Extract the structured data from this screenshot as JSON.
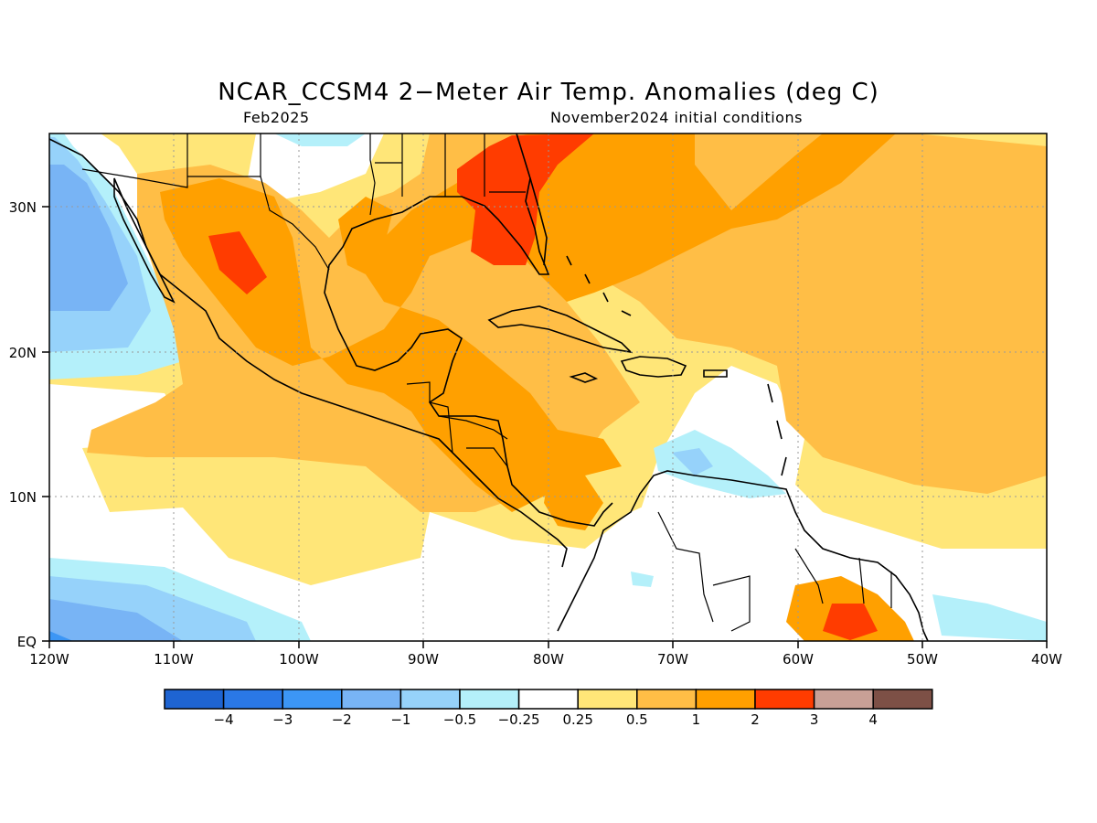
{
  "title": "NCAR_CCSM4 2−Meter Air Temp. Anomalies (deg C)",
  "subtitle_left": "Feb2025",
  "subtitle_right": "November2024 initial conditions",
  "lat_labels": [
    "30N",
    "20N",
    "10N",
    "EQ"
  ],
  "lon_labels": [
    "120W",
    "110W",
    "100W",
    "90W",
    "80W",
    "70W",
    "60W",
    "50W",
    "40W"
  ],
  "colorbar": {
    "colors": [
      "#1e64d2",
      "#2a78e6",
      "#3c96f5",
      "#78b4f5",
      "#96d2fa",
      "#b4f0fa",
      "#ffffff",
      "#ffe678",
      "#ffbe46",
      "#ffa000",
      "#ff3c00",
      "#c8a096",
      "#7d5046"
    ],
    "labels": [
      "−4",
      "−3",
      "−2",
      "−1",
      "−0.5",
      "−0.25",
      "0.25",
      "0.5",
      "1",
      "2",
      "3",
      "4"
    ]
  },
  "colors": {
    "warm_light": "#ffe678",
    "warm_mid": "#ffbe46",
    "warm_strong": "#ffa000",
    "hot": "#ff3c00",
    "cool_light": "#b4f0fa",
    "cool_mid": "#96d2fa",
    "cool_strong": "#78b4f5"
  }
}
